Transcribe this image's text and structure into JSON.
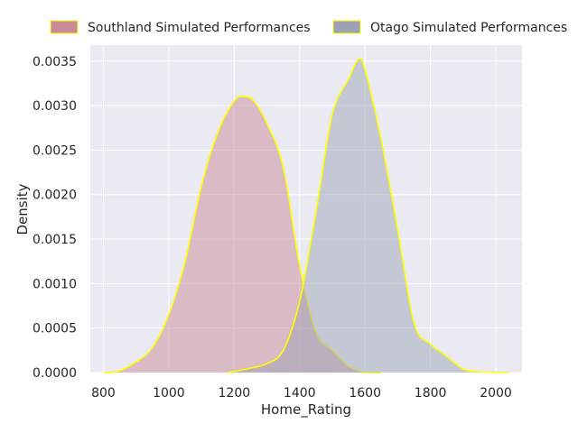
{
  "chart_data": {
    "type": "area",
    "xlabel": "Home_Rating",
    "ylabel": "Density",
    "xlim": [
      760,
      2080
    ],
    "ylim": [
      0,
      0.00368
    ],
    "x_ticks": [
      "800",
      "1000",
      "1200",
      "1400",
      "1600",
      "1800",
      "2000"
    ],
    "y_ticks": [
      "0.0000",
      "0.0005",
      "0.0010",
      "0.0015",
      "0.0020",
      "0.0025",
      "0.0030",
      "0.0035"
    ],
    "grid": true,
    "legend_position": "top",
    "series": [
      {
        "name": "Southland Simulated Performances",
        "fill": "#c98a97",
        "edge": "#ffff00",
        "points": [
          [
            800,
            0.0
          ],
          [
            850,
            2e-05
          ],
          [
            900,
            0.00012
          ],
          [
            950,
            0.00028
          ],
          [
            1000,
            0.00065
          ],
          [
            1050,
            0.00125
          ],
          [
            1100,
            0.0021
          ],
          [
            1150,
            0.0027
          ],
          [
            1200,
            0.00305
          ],
          [
            1230,
            0.0031
          ],
          [
            1260,
            0.00305
          ],
          [
            1300,
            0.0028
          ],
          [
            1350,
            0.0023
          ],
          [
            1400,
            0.0012
          ],
          [
            1450,
            0.00045
          ],
          [
            1500,
            0.00025
          ],
          [
            1550,
            7e-05
          ],
          [
            1600,
            0.0
          ],
          [
            1650,
            0.0
          ]
        ]
      },
      {
        "name": "Otago Simulated Performances",
        "fill": "#9da3b5",
        "edge": "#ffff00",
        "points": [
          [
            1180,
            0.0
          ],
          [
            1250,
            5e-05
          ],
          [
            1300,
            0.0001
          ],
          [
            1350,
            0.00025
          ],
          [
            1400,
            0.0008
          ],
          [
            1450,
            0.0018
          ],
          [
            1500,
            0.0029
          ],
          [
            1550,
            0.0033
          ],
          [
            1580,
            0.00352
          ],
          [
            1600,
            0.0034
          ],
          [
            1650,
            0.0026
          ],
          [
            1700,
            0.0016
          ],
          [
            1750,
            0.00055
          ],
          [
            1800,
            0.00032
          ],
          [
            1850,
            0.00018
          ],
          [
            1900,
            4e-05
          ],
          [
            1950,
            1e-05
          ],
          [
            2040,
            0.0
          ]
        ]
      }
    ]
  }
}
